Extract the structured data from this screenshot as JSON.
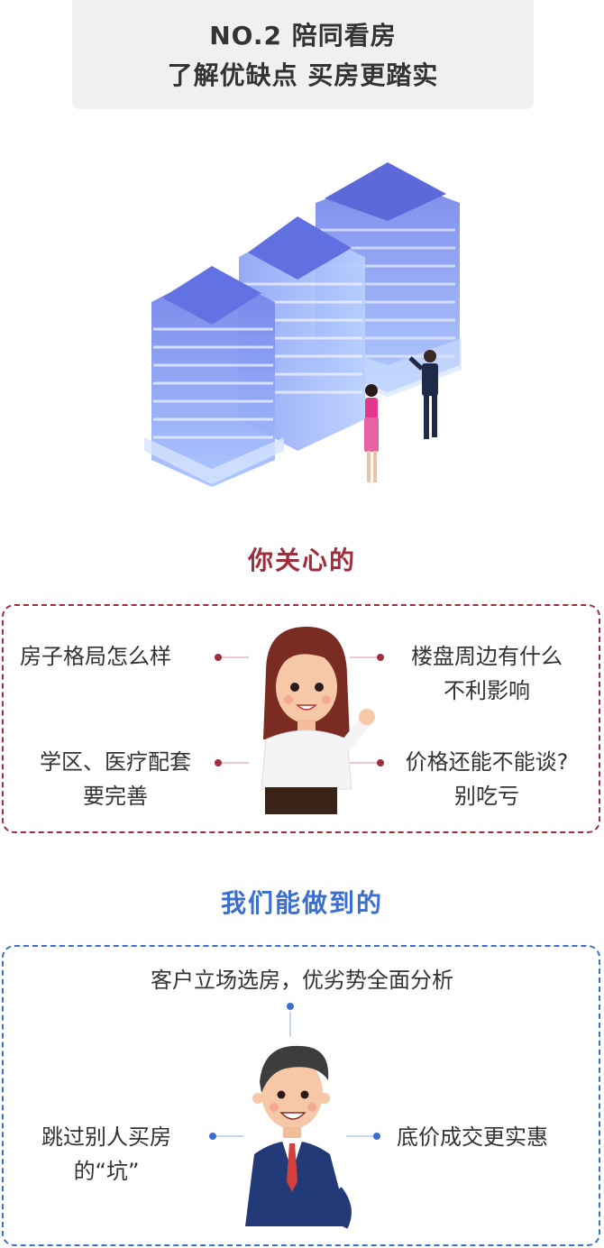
{
  "title": {
    "line1": "NO.2 陪同看房",
    "line2": "了解优缺点 买房更踏实"
  },
  "concerns": {
    "heading": "你关心的",
    "items": [
      {
        "line1": "房子格局怎么样",
        "line2": ""
      },
      {
        "line1": "楼盘周边有什么",
        "line2": "不利影响"
      },
      {
        "line1": "学区、医疗配套",
        "line2": "要完善"
      },
      {
        "line1": "价格还能不能谈?",
        "line2": "别吃亏"
      }
    ]
  },
  "capabilities": {
    "heading": "我们能做到的",
    "items": [
      {
        "line1": "客户立场选房，优劣势全面分析",
        "line2": ""
      },
      {
        "line1": "跳过别人买房",
        "line2": "的“坑”"
      },
      {
        "line1": "底价成交更实惠",
        "line2": ""
      }
    ]
  },
  "colors": {
    "concern_accent": "#a02c3c",
    "capability_accent": "#3a6fcf",
    "building": "#7d8cf0"
  }
}
